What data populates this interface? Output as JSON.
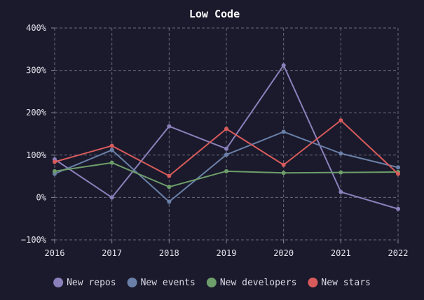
{
  "chart_data": {
    "type": "line",
    "title": "Low Code",
    "xlabel": "",
    "ylabel": "",
    "x": [
      "2016",
      "2017",
      "2018",
      "2019",
      "2020",
      "2021",
      "2022"
    ],
    "ylim": [
      -100,
      400
    ],
    "yticks": [
      -100,
      0,
      100,
      200,
      300,
      400
    ],
    "ytick_labels": [
      "−100%",
      "0%",
      "100%",
      "200%",
      "300%",
      "400%"
    ],
    "grid": true,
    "legend_position": "bottom",
    "series": [
      {
        "name": "New repos",
        "color": "#8b80bb",
        "values": [
          90,
          0,
          168,
          115,
          312,
          13,
          -27
        ]
      },
      {
        "name": "New events",
        "color": "#6a80a8",
        "values": [
          56,
          112,
          -10,
          101,
          155,
          104,
          71
        ]
      },
      {
        "name": "New developers",
        "color": "#6e9e6a",
        "values": [
          62,
          82,
          25,
          62,
          58,
          59,
          60
        ]
      },
      {
        "name": "New stars",
        "color": "#d85b5b",
        "values": [
          84,
          122,
          51,
          162,
          77,
          182,
          56
        ]
      }
    ]
  }
}
